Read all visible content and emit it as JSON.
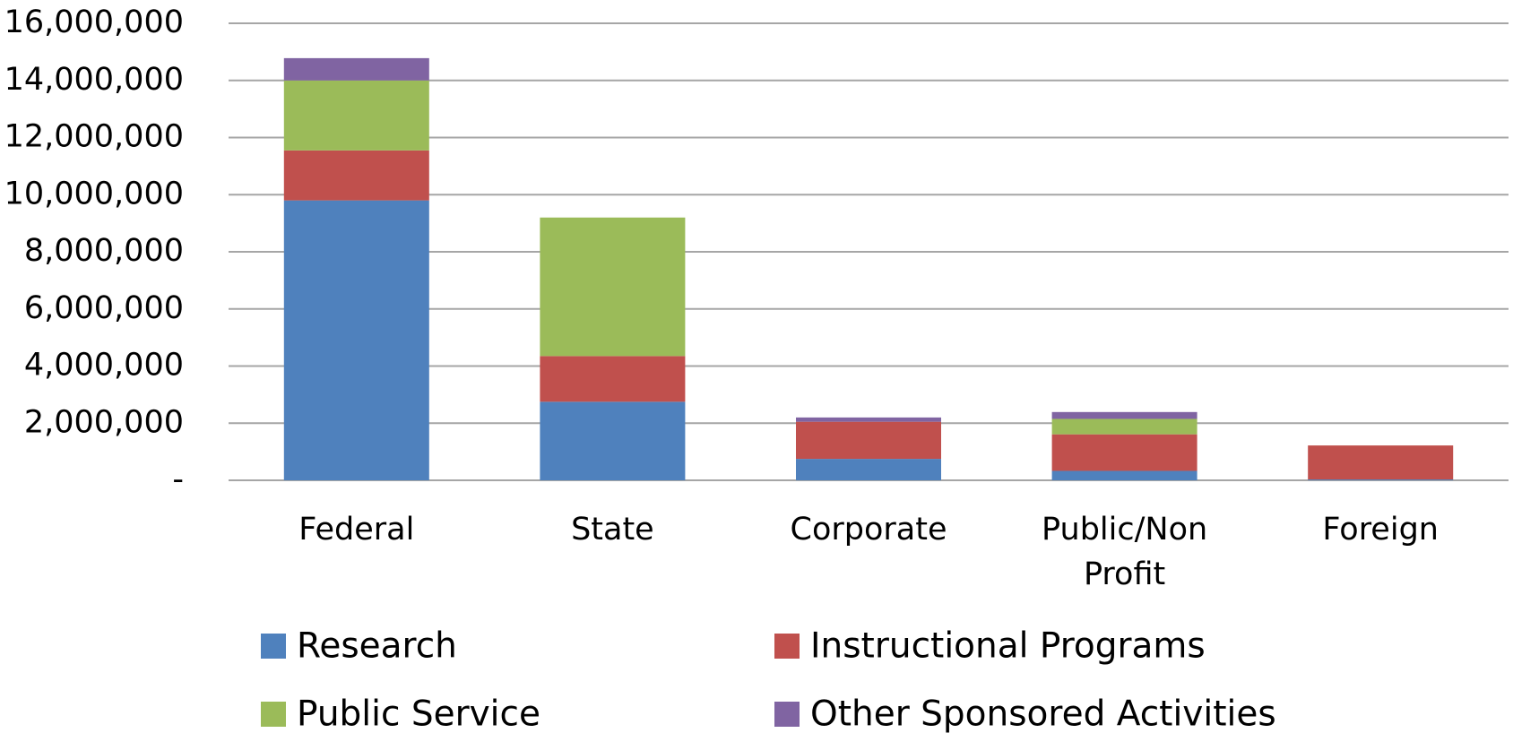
{
  "chart_data": {
    "type": "stacked_bar",
    "categories": [
      "Federal",
      "State",
      "Corporate",
      "Public/Non Profit",
      "Foreign"
    ],
    "series": [
      {
        "name": "Research",
        "color": "#4f81bd",
        "values": [
          9800000,
          2750000,
          750000,
          330000,
          30000
        ]
      },
      {
        "name": "Instructional Programs",
        "color": "#c0504d",
        "values": [
          1750000,
          1600000,
          1300000,
          1280000,
          1190000
        ]
      },
      {
        "name": "Public Service",
        "color": "#9bbb59",
        "values": [
          2450000,
          4850000,
          0,
          540000,
          0
        ]
      },
      {
        "name": "Other Sponsored Activities",
        "color": "#8064a2",
        "values": [
          780000,
          0,
          150000,
          240000,
          0
        ]
      }
    ],
    "ylim": [
      0,
      16000000
    ],
    "yticks": [
      {
        "value": 0,
        "label": "-"
      },
      {
        "value": 2000000,
        "label": "2,000,000"
      },
      {
        "value": 4000000,
        "label": "4,000,000"
      },
      {
        "value": 6000000,
        "label": "6,000,000"
      },
      {
        "value": 8000000,
        "label": "8,000,000"
      },
      {
        "value": 10000000,
        "label": "10,000,000"
      },
      {
        "value": 12000000,
        "label": "12,000,000"
      },
      {
        "value": 14000000,
        "label": "14,000,000"
      },
      {
        "value": 16000000,
        "label": "16,000,000"
      }
    ],
    "grid": true,
    "legend": "bottom"
  }
}
